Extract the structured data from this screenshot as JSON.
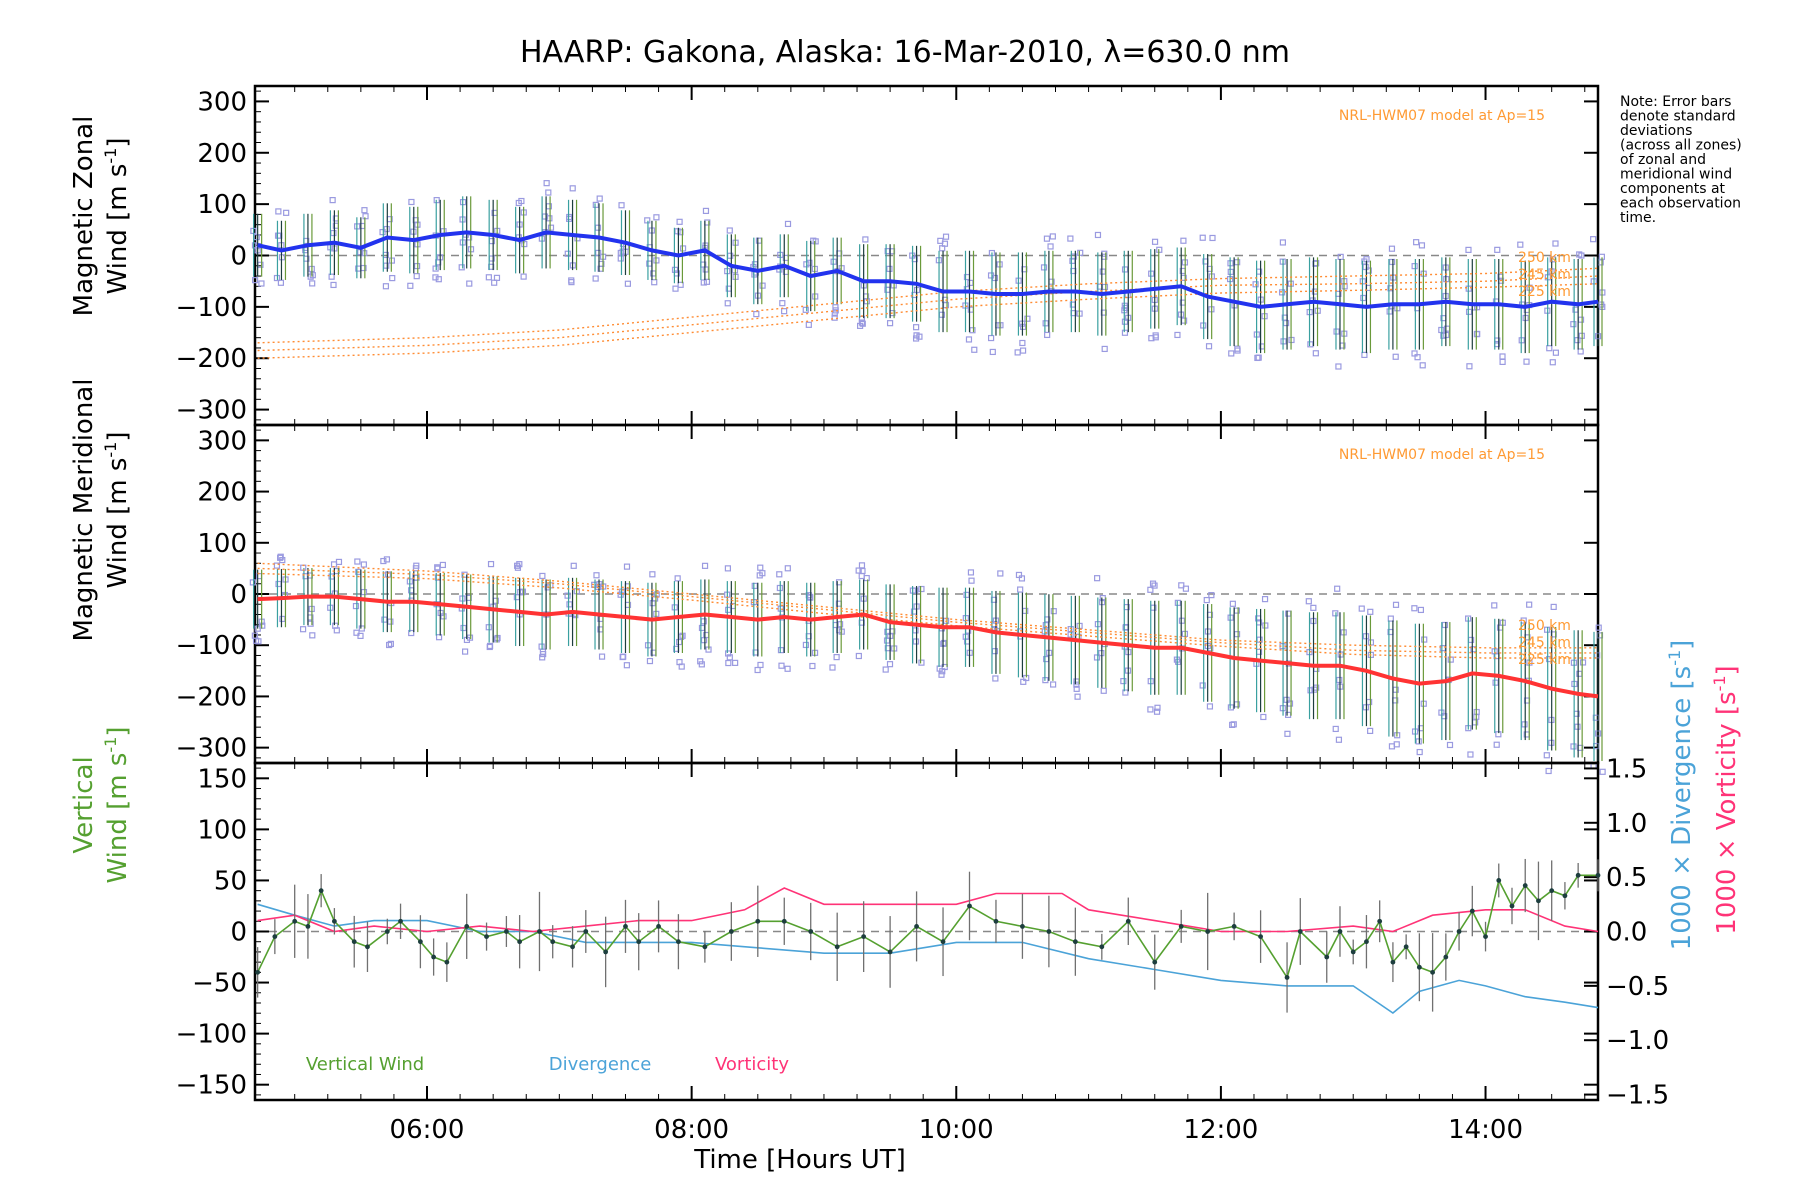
{
  "title": "HAARP: Gakona,  Alaska: 16-Mar-2010, λ=630.0 nm",
  "note": [
    "Note: Error bars",
    "denote standard",
    "deviations",
    "(across all zones)",
    "of zonal and",
    "meridional wind",
    "components at",
    "each observation",
    "time."
  ],
  "colors": {
    "zonal": "#2233ee",
    "meridional": "#ff3333",
    "scatter": "#9a9ae0",
    "model": "#ff8c33",
    "vertical": "#55a030",
    "divergence": "#4ba3d8",
    "vorticity": "#ff3377",
    "errorbar": "#707070"
  },
  "chart_data": [
    {
      "type": "line",
      "panel": "zonal",
      "ylabel_line1": "Magnetic Zonal",
      "ylabel_line2": "Wind [m s",
      "ylabel_sup": "-1",
      "ylabel_end": "]",
      "model_label": "NRL-HWM07 model at Ap=15",
      "model_altitudes": [
        "250 km",
        "245 km",
        "225 km"
      ],
      "ylim": [
        -330,
        330
      ],
      "yticks": [
        300,
        200,
        100,
        0,
        -100,
        -200,
        -300
      ],
      "xlim": [
        4.7,
        14.85
      ],
      "zero_line": true,
      "series": [
        {
          "color": "#2233ee",
          "x": [
            4.72,
            4.9,
            5.1,
            5.3,
            5.5,
            5.7,
            5.9,
            6.1,
            6.3,
            6.5,
            6.7,
            6.9,
            7.1,
            7.3,
            7.5,
            7.7,
            7.9,
            8.1,
            8.3,
            8.5,
            8.7,
            8.9,
            9.1,
            9.3,
            9.5,
            9.7,
            9.9,
            10.1,
            10.3,
            10.5,
            10.7,
            10.9,
            11.1,
            11.3,
            11.5,
            11.7,
            11.9,
            12.1,
            12.3,
            12.5,
            12.7,
            12.9,
            13.1,
            13.3,
            13.5,
            13.7,
            13.9,
            14.1,
            14.3,
            14.5,
            14.7,
            14.85
          ],
          "y": [
            20,
            10,
            20,
            25,
            15,
            35,
            30,
            40,
            45,
            40,
            30,
            45,
            40,
            35,
            25,
            10,
            0,
            10,
            -20,
            -30,
            -20,
            -40,
            -30,
            -50,
            -50,
            -55,
            -70,
            -70,
            -75,
            -75,
            -70,
            -70,
            -75,
            -70,
            -65,
            -60,
            -80,
            -90,
            -100,
            -95,
            -90,
            -95,
            -100,
            -95,
            -95,
            -90,
            -95,
            -95,
            -100,
            -90,
            -95,
            -90
          ]
        }
      ],
      "model_curves": [
        {
          "x": [
            4.72,
            6,
            7,
            8,
            9,
            10,
            11,
            12,
            13,
            14,
            14.85
          ],
          "y": [
            -170,
            -160,
            -145,
            -120,
            -95,
            -70,
            -55,
            -45,
            -40,
            -35,
            -25
          ]
        },
        {
          "x": [
            4.72,
            6,
            7,
            8,
            9,
            10,
            11,
            12,
            13,
            14,
            14.85
          ],
          "y": [
            -185,
            -175,
            -160,
            -135,
            -110,
            -85,
            -70,
            -58,
            -55,
            -50,
            -40
          ]
        },
        {
          "x": [
            4.72,
            6,
            7,
            8,
            9,
            10,
            11,
            12,
            13,
            14,
            14.85
          ],
          "y": [
            -200,
            -190,
            -175,
            -150,
            -125,
            -100,
            -85,
            -73,
            -68,
            -62,
            -55
          ]
        }
      ]
    },
    {
      "type": "line",
      "panel": "meridional",
      "ylabel_line1": "Magnetic Meridional",
      "ylabel_line2": "Wind [m s",
      "ylabel_sup": "-1",
      "ylabel_end": "]",
      "model_label": "NRL-HWM07 model at Ap=15",
      "model_altitudes": [
        "250 km",
        "245 km",
        "225 km"
      ],
      "ylim": [
        -330,
        330
      ],
      "yticks": [
        300,
        200,
        100,
        0,
        -100,
        -200,
        -300
      ],
      "xlim": [
        4.7,
        14.85
      ],
      "zero_line": true,
      "series": [
        {
          "color": "#ff3333",
          "x": [
            4.72,
            4.9,
            5.1,
            5.3,
            5.5,
            5.7,
            5.9,
            6.1,
            6.3,
            6.5,
            6.7,
            6.9,
            7.1,
            7.3,
            7.5,
            7.7,
            7.9,
            8.1,
            8.3,
            8.5,
            8.7,
            8.9,
            9.1,
            9.3,
            9.5,
            9.7,
            9.9,
            10.1,
            10.3,
            10.5,
            10.7,
            10.9,
            11.1,
            11.3,
            11.5,
            11.7,
            11.9,
            12.1,
            12.3,
            12.5,
            12.7,
            12.9,
            13.1,
            13.3,
            13.5,
            13.7,
            13.9,
            14.1,
            14.3,
            14.5,
            14.7,
            14.85
          ],
          "y": [
            -10,
            -8,
            -5,
            -5,
            -10,
            -15,
            -15,
            -20,
            -25,
            -30,
            -35,
            -40,
            -35,
            -40,
            -45,
            -50,
            -45,
            -40,
            -45,
            -50,
            -45,
            -50,
            -45,
            -40,
            -55,
            -60,
            -65,
            -65,
            -75,
            -80,
            -85,
            -90,
            -95,
            -100,
            -105,
            -105,
            -115,
            -125,
            -130,
            -135,
            -140,
            -140,
            -150,
            -165,
            -175,
            -170,
            -155,
            -160,
            -170,
            -185,
            -195,
            -200
          ]
        }
      ],
      "model_curves": [
        {
          "x": [
            4.72,
            6,
            7,
            8,
            9,
            10,
            11,
            12,
            13,
            14,
            14.85
          ],
          "y": [
            60,
            45,
            25,
            0,
            -25,
            -50,
            -70,
            -90,
            -100,
            -105,
            -105
          ]
        },
        {
          "x": [
            4.72,
            6,
            7,
            8,
            9,
            10,
            11,
            12,
            13,
            14,
            14.85
          ],
          "y": [
            50,
            38,
            20,
            -5,
            -30,
            -55,
            -75,
            -95,
            -110,
            -115,
            -115
          ]
        },
        {
          "x": [
            4.72,
            6,
            7,
            8,
            9,
            10,
            11,
            12,
            13,
            14,
            14.85
          ],
          "y": [
            40,
            30,
            12,
            -12,
            -38,
            -62,
            -82,
            -102,
            -118,
            -125,
            -125
          ]
        }
      ]
    },
    {
      "type": "line",
      "panel": "vertical",
      "ylabel_line1": "Vertical",
      "ylabel_line2a": "Wind ",
      "ylabel_line2b": "[m s",
      "ylabel_sup": "-1",
      "ylabel_end": "]",
      "xlabel": "Time [Hours UT]",
      "xticks": [
        "06:00",
        "08:00",
        "10:00",
        "12:00",
        "14:00"
      ],
      "xtick_values": [
        6,
        8,
        10,
        12,
        14
      ],
      "xlim": [
        4.7,
        14.85
      ],
      "ylim": [
        -165,
        165
      ],
      "yticks": [
        150,
        100,
        50,
        0,
        -50,
        -100,
        -150
      ],
      "right_ylim": [
        -1.55,
        1.55
      ],
      "right_yticks": [
        "1.5",
        "1.0",
        "0.5",
        "0.0",
        "−0.5",
        "−1.0",
        "−1.5"
      ],
      "right_ytick_values": [
        1.5,
        1.0,
        0.5,
        0.0,
        -0.5,
        -1.0,
        -1.5
      ],
      "right_ylabel_div": "1000 × Divergence [s",
      "right_ylabel_vor": "1000 × Vorticity [s",
      "right_ylabel_sup": "-1",
      "right_ylabel_end": "]",
      "legend": [
        "Vertical Wind",
        "Divergence",
        "Vorticity"
      ],
      "zero_line": true,
      "series": [
        {
          "name": "Vertical Wind",
          "color": "#55a030",
          "x": [
            4.72,
            4.85,
            5.0,
            5.1,
            5.2,
            5.3,
            5.45,
            5.55,
            5.7,
            5.8,
            5.95,
            6.05,
            6.15,
            6.3,
            6.45,
            6.6,
            6.7,
            6.85,
            6.95,
            7.1,
            7.2,
            7.35,
            7.5,
            7.6,
            7.75,
            7.9,
            8.1,
            8.3,
            8.5,
            8.7,
            8.9,
            9.1,
            9.3,
            9.5,
            9.7,
            9.9,
            10.1,
            10.3,
            10.5,
            10.7,
            10.9,
            11.1,
            11.3,
            11.5,
            11.7,
            11.9,
            12.1,
            12.3,
            12.5,
            12.6,
            12.8,
            12.9,
            13.0,
            13.1,
            13.2,
            13.3,
            13.4,
            13.5,
            13.6,
            13.7,
            13.8,
            13.9,
            14.0,
            14.1,
            14.2,
            14.3,
            14.4,
            14.5,
            14.6,
            14.7,
            14.85
          ],
          "y": [
            -40,
            -5,
            10,
            5,
            40,
            10,
            -10,
            -15,
            0,
            10,
            -10,
            -25,
            -30,
            5,
            -5,
            0,
            -10,
            0,
            -10,
            -15,
            0,
            -20,
            5,
            -10,
            5,
            -10,
            -15,
            0,
            10,
            10,
            0,
            -15,
            -5,
            -20,
            5,
            -10,
            25,
            10,
            5,
            0,
            -10,
            -15,
            10,
            -30,
            5,
            0,
            5,
            -5,
            -45,
            0,
            -25,
            0,
            -20,
            -10,
            10,
            -30,
            -15,
            -35,
            -40,
            -25,
            0,
            20,
            -5,
            50,
            25,
            45,
            30,
            40,
            35,
            55,
            55
          ]
        },
        {
          "name": "Divergence",
          "color": "#4ba3d8",
          "axis": "right",
          "x": [
            4.72,
            5.0,
            5.3,
            5.6,
            6.0,
            6.4,
            6.8,
            7.2,
            7.6,
            8.0,
            8.5,
            9.0,
            9.5,
            10.0,
            10.5,
            11.0,
            11.5,
            12.0,
            12.5,
            13.0,
            13.3,
            13.5,
            13.8,
            14.0,
            14.3,
            14.6,
            14.85
          ],
          "y": [
            0.25,
            0.15,
            0.05,
            0.1,
            0.1,
            0.0,
            0.0,
            -0.1,
            -0.1,
            -0.1,
            -0.15,
            -0.2,
            -0.2,
            -0.1,
            -0.1,
            -0.25,
            -0.35,
            -0.45,
            -0.5,
            -0.5,
            -0.75,
            -0.55,
            -0.45,
            -0.5,
            -0.6,
            -0.65,
            -0.7
          ]
        },
        {
          "name": "Vorticity",
          "color": "#ff3377",
          "axis": "right",
          "x": [
            4.72,
            5.0,
            5.3,
            5.6,
            6.0,
            6.4,
            6.8,
            7.2,
            7.6,
            8.0,
            8.4,
            8.7,
            9.0,
            9.5,
            10.0,
            10.3,
            10.8,
            11.0,
            11.5,
            12.0,
            12.5,
            13.0,
            13.3,
            13.6,
            14.0,
            14.3,
            14.6,
            14.85
          ],
          "y": [
            0.1,
            0.15,
            0.0,
            0.05,
            0.0,
            0.05,
            0.0,
            0.05,
            0.1,
            0.1,
            0.2,
            0.4,
            0.25,
            0.25,
            0.25,
            0.35,
            0.35,
            0.2,
            0.1,
            0.0,
            0.0,
            0.05,
            0.0,
            0.15,
            0.2,
            0.2,
            0.05,
            0.0
          ]
        }
      ]
    }
  ]
}
